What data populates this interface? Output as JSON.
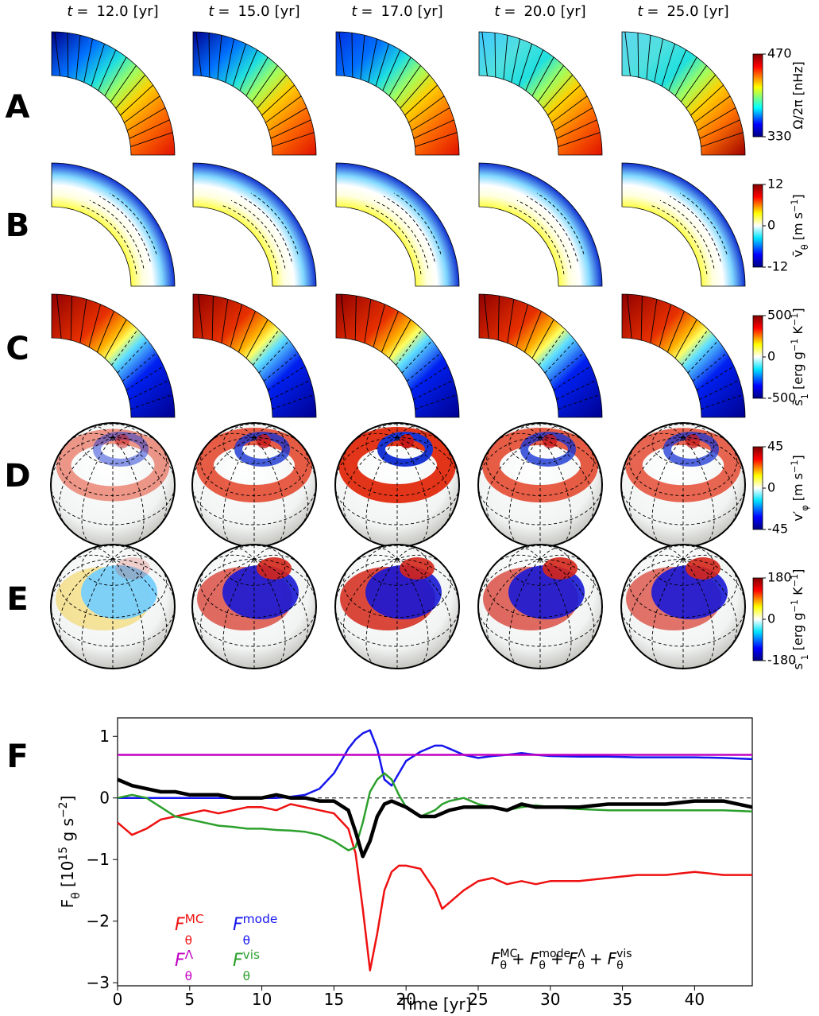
{
  "columns": {
    "symbol": "t",
    "equals": "=",
    "unit": "[yr]",
    "times": [
      {
        "value": 12,
        "label": "12.0"
      },
      {
        "value": 15,
        "label": "15.0"
      },
      {
        "value": 17,
        "label": "17.0"
      },
      {
        "value": 20,
        "label": "20.0"
      },
      {
        "value": 25,
        "label": "25.0"
      }
    ]
  },
  "rows": [
    {
      "label": "A",
      "colorbar": {
        "colormap": "jet",
        "clim": [
          330,
          470
        ],
        "ticks": [
          330,
          470
        ],
        "label": [
          [
            "Ω/2π [nHz]",
            ""
          ]
        ]
      }
    },
    {
      "label": "B",
      "colorbar": {
        "colormap": "diverging",
        "clim": [
          -12,
          12
        ],
        "ticks": [
          -12,
          0,
          12
        ],
        "label": [
          [
            "v̄",
            ""
          ],
          [
            "θ",
            "sub"
          ],
          [
            " [m s",
            ""
          ],
          [
            "−1",
            "sup"
          ],
          [
            "]",
            ""
          ]
        ]
      }
    },
    {
      "label": "C",
      "colorbar": {
        "colormap": "diverging",
        "clim": [
          -500,
          500
        ],
        "ticks": [
          -500,
          0,
          500
        ],
        "label": [
          [
            "s̄",
            ""
          ],
          [
            "1",
            "sub"
          ],
          [
            " [erg g",
            ""
          ],
          [
            "−1",
            "sup"
          ],
          [
            " K",
            ""
          ],
          [
            "−1",
            "sup"
          ],
          [
            "]",
            ""
          ]
        ]
      }
    },
    {
      "label": "D",
      "colorbar": {
        "colormap": "diverging",
        "clim": [
          -45,
          45
        ],
        "ticks": [
          -45,
          0,
          45
        ],
        "label": [
          [
            "v′",
            ""
          ],
          [
            "φ",
            "sub"
          ],
          [
            " [m s",
            ""
          ],
          [
            "−1",
            "sup"
          ],
          [
            "]",
            ""
          ]
        ]
      }
    },
    {
      "label": "E",
      "colorbar": {
        "colormap": "diverging",
        "clim": [
          -180,
          180
        ],
        "ticks": [
          -180,
          0,
          180
        ],
        "label": [
          [
            "s′",
            ""
          ],
          [
            "1",
            "sub"
          ],
          [
            " [erg g",
            ""
          ],
          [
            "−1",
            "sup"
          ],
          [
            " K",
            ""
          ],
          [
            "−1",
            "sup"
          ],
          [
            "]",
            ""
          ]
        ]
      }
    }
  ],
  "panel_f_label": "F",
  "chart_data": {
    "type": "line",
    "xlabel": "Time [yr]",
    "ylabel": [
      [
        "F",
        ""
      ],
      [
        "θ",
        "sub"
      ],
      [
        " [10",
        ""
      ],
      [
        "15",
        "sup"
      ],
      [
        " g s",
        ""
      ],
      [
        "−2",
        "sup"
      ],
      [
        "]",
        ""
      ]
    ],
    "xlim": [
      0,
      44
    ],
    "ylim": [
      -3.05,
      1.3
    ],
    "xticks": [
      0,
      5,
      10,
      15,
      20,
      25,
      30,
      35,
      40
    ],
    "yticks": [
      {
        "value": -3,
        "label": "−3"
      },
      {
        "value": -2,
        "label": "−2"
      },
      {
        "value": -1,
        "label": "−1"
      },
      0,
      1
    ],
    "reference_line": 0,
    "x": [
      0,
      1,
      2,
      3,
      4,
      5,
      6,
      7,
      8,
      9,
      10,
      11,
      12,
      13,
      14,
      15,
      16,
      16.5,
      17,
      17.5,
      18,
      18.5,
      19,
      19.5,
      20,
      21,
      22,
      22.5,
      23,
      24,
      25,
      26,
      27,
      28,
      29,
      30,
      32,
      34,
      36,
      38,
      40,
      42,
      44
    ],
    "series": [
      {
        "name": "F",
        "sub": "θ",
        "sup": "MC",
        "color": "#ee1111",
        "line_width": 2.5,
        "values": [
          -0.4,
          -0.6,
          -0.5,
          -0.35,
          -0.3,
          -0.25,
          -0.2,
          -0.25,
          -0.2,
          -0.15,
          -0.15,
          -0.2,
          -0.1,
          -0.15,
          -0.2,
          -0.25,
          -0.5,
          -0.9,
          -1.8,
          -2.8,
          -2.2,
          -1.5,
          -1.2,
          -1.1,
          -1.1,
          -1.15,
          -1.5,
          -1.8,
          -1.7,
          -1.5,
          -1.35,
          -1.3,
          -1.4,
          -1.35,
          -1.4,
          -1.35,
          -1.35,
          -1.3,
          -1.25,
          -1.25,
          -1.2,
          -1.25,
          -1.25
        ]
      },
      {
        "name": "F",
        "sub": "θ",
        "sup": "mode",
        "color": "#1515ee",
        "line_width": 2.5,
        "values": [
          0,
          0,
          0,
          0,
          0,
          0,
          0,
          0,
          0,
          0,
          0,
          0,
          0.02,
          0.05,
          0.15,
          0.4,
          0.8,
          0.95,
          1.05,
          1.1,
          0.8,
          0.3,
          0.2,
          0.4,
          0.6,
          0.75,
          0.85,
          0.85,
          0.8,
          0.7,
          0.65,
          0.68,
          0.7,
          0.73,
          0.7,
          0.68,
          0.67,
          0.67,
          0.66,
          0.66,
          0.66,
          0.65,
          0.63
        ]
      },
      {
        "name": "F",
        "sub": "θ",
        "sup": "Λ",
        "color": "#c000c0",
        "line_width": 2.5,
        "x": [
          0,
          44
        ],
        "values": [
          0.7,
          0.7
        ]
      },
      {
        "name": "F",
        "sub": "θ",
        "sup": "vis",
        "color": "#2ca02c",
        "line_width": 2.5,
        "values": [
          0,
          0.05,
          0,
          -0.15,
          -0.3,
          -0.35,
          -0.4,
          -0.45,
          -0.47,
          -0.5,
          -0.5,
          -0.52,
          -0.53,
          -0.55,
          -0.6,
          -0.7,
          -0.85,
          -0.8,
          -0.4,
          0.1,
          0.3,
          0.4,
          0.3,
          0.05,
          -0.15,
          -0.3,
          -0.2,
          -0.1,
          -0.05,
          0,
          -0.1,
          -0.15,
          -0.2,
          -0.15,
          -0.12,
          -0.15,
          -0.18,
          -0.2,
          -0.2,
          -0.2,
          -0.2,
          -0.2,
          -0.22
        ]
      },
      {
        "color": "#000000",
        "line_width": 4.5,
        "values": [
          0.3,
          0.2,
          0.15,
          0.1,
          0.1,
          0.05,
          0.05,
          0.05,
          0,
          0,
          0,
          0.05,
          0,
          0,
          -0.05,
          -0.05,
          -0.2,
          -0.55,
          -0.95,
          -0.7,
          -0.3,
          -0.1,
          -0.05,
          -0.1,
          -0.15,
          -0.3,
          -0.3,
          -0.25,
          -0.2,
          -0.15,
          -0.15,
          -0.15,
          -0.2,
          -0.1,
          -0.15,
          -0.15,
          -0.15,
          -0.1,
          -0.1,
          -0.1,
          -0.05,
          -0.05,
          -0.15
        ]
      }
    ],
    "annotation": {
      "operator": "+",
      "terms": [
        {
          "base": "F",
          "sub": "θ",
          "sup": "MC"
        },
        {
          "base": "F",
          "sub": "θ",
          "sup": "mode"
        },
        {
          "base": "F",
          "sub": "θ",
          "sup": "Λ"
        },
        {
          "base": "F",
          "sub": "θ",
          "sup": "vis"
        }
      ]
    }
  }
}
